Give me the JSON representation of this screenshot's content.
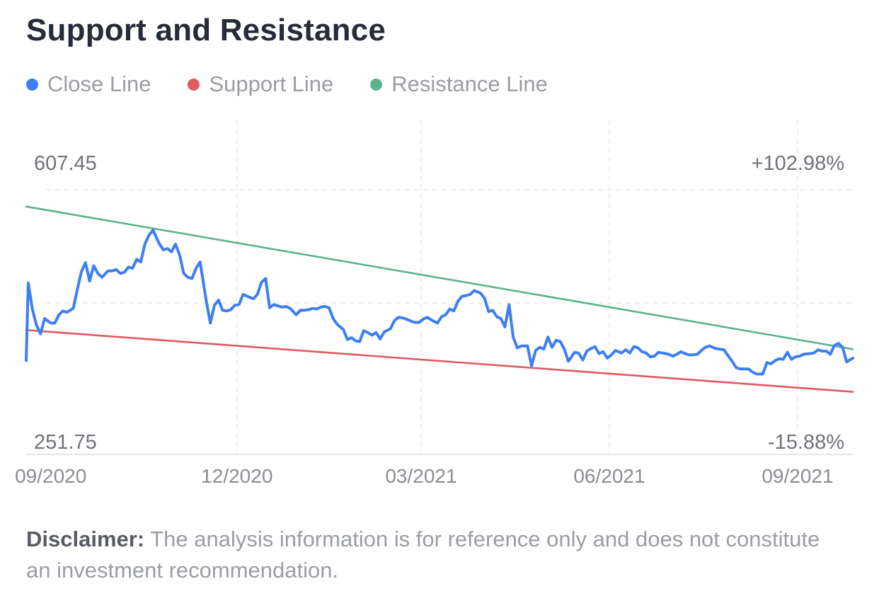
{
  "title": "Support and Resistance",
  "legend": [
    {
      "label": "Close Line",
      "color": "#3d7ff3"
    },
    {
      "label": "Support Line",
      "color": "#de5a60"
    },
    {
      "label": "Resistance Line",
      "color": "#5bb38d"
    }
  ],
  "disclaimer": {
    "label": "Disclaimer:",
    "text": " The analysis information is for reference only and does not constitute an investment recommendation."
  },
  "chart_data": {
    "type": "line",
    "y_max_label": "607.45",
    "y_min_label": "251.75",
    "pct_max_label": "+102.98%",
    "pct_min_label": "-15.88%",
    "ylim": [
      251.75,
      607.45
    ],
    "xlim": [
      "2020-08-20",
      "2021-09-28"
    ],
    "grid": true,
    "legend_position": "top-left",
    "x_ticks": [
      {
        "label": "09/2020",
        "date": "2020-09-01"
      },
      {
        "label": "12/2020",
        "date": "2020-12-01"
      },
      {
        "label": "03/2021",
        "date": "2021-03-01"
      },
      {
        "label": "06/2021",
        "date": "2021-06-01"
      },
      {
        "label": "09/2021",
        "date": "2021-09-01"
      }
    ],
    "series": [
      {
        "name": "Close Line",
        "color": "#3d7ff3",
        "points": [
          [
            "2020-08-20",
            339
          ],
          [
            "2020-08-21",
            461
          ],
          [
            "2020-08-23",
            420
          ],
          [
            "2020-08-25",
            395
          ],
          [
            "2020-08-27",
            381
          ],
          [
            "2020-08-29",
            405
          ],
          [
            "2020-09-01",
            398
          ],
          [
            "2020-09-03",
            398
          ],
          [
            "2020-09-05",
            411
          ],
          [
            "2020-09-07",
            417
          ],
          [
            "2020-09-09",
            415
          ],
          [
            "2020-09-12",
            421
          ],
          [
            "2020-09-14",
            451
          ],
          [
            "2020-09-16",
            479
          ],
          [
            "2020-09-18",
            493
          ],
          [
            "2020-09-20",
            464
          ],
          [
            "2020-09-22",
            488
          ],
          [
            "2020-09-24",
            476
          ],
          [
            "2020-09-26",
            470
          ],
          [
            "2020-09-29",
            480
          ],
          [
            "2020-10-01",
            480
          ],
          [
            "2020-10-03",
            482
          ],
          [
            "2020-10-05",
            476
          ],
          [
            "2020-10-07",
            478
          ],
          [
            "2020-10-09",
            486
          ],
          [
            "2020-10-11",
            484
          ],
          [
            "2020-10-13",
            498
          ],
          [
            "2020-10-15",
            494
          ],
          [
            "2020-10-17",
            522
          ],
          [
            "2020-10-19",
            536
          ],
          [
            "2020-10-21",
            544
          ],
          [
            "2020-10-24",
            523
          ],
          [
            "2020-10-26",
            513
          ],
          [
            "2020-10-28",
            515
          ],
          [
            "2020-10-30",
            510
          ],
          [
            "2020-11-01",
            522
          ],
          [
            "2020-11-03",
            505
          ],
          [
            "2020-11-05",
            476
          ],
          [
            "2020-11-07",
            470
          ],
          [
            "2020-11-09",
            468
          ],
          [
            "2020-11-11",
            484
          ],
          [
            "2020-11-13",
            494
          ],
          [
            "2020-11-16",
            433
          ],
          [
            "2020-11-18",
            398
          ],
          [
            "2020-11-20",
            426
          ],
          [
            "2020-11-22",
            434
          ],
          [
            "2020-11-24",
            418
          ],
          [
            "2020-11-26",
            417
          ],
          [
            "2020-11-28",
            419
          ],
          [
            "2020-11-30",
            426
          ],
          [
            "2020-12-02",
            427
          ],
          [
            "2020-12-04",
            443
          ],
          [
            "2020-12-06",
            440
          ],
          [
            "2020-12-09",
            436
          ],
          [
            "2020-12-11",
            443
          ],
          [
            "2020-12-13",
            462
          ],
          [
            "2020-12-15",
            468
          ],
          [
            "2020-12-17",
            422
          ],
          [
            "2020-12-19",
            427
          ],
          [
            "2020-12-21",
            425
          ],
          [
            "2020-12-23",
            423
          ],
          [
            "2020-12-25",
            424
          ],
          [
            "2020-12-27",
            421
          ],
          [
            "2020-12-30",
            411
          ],
          [
            "2021-01-01",
            418
          ],
          [
            "2021-01-03",
            418
          ],
          [
            "2021-01-05",
            419
          ],
          [
            "2021-01-07",
            421
          ],
          [
            "2021-01-09",
            420
          ],
          [
            "2021-01-11",
            423
          ],
          [
            "2021-01-13",
            424
          ],
          [
            "2021-01-15",
            422
          ],
          [
            "2021-01-17",
            405
          ],
          [
            "2021-01-19",
            396
          ],
          [
            "2021-01-22",
            388
          ],
          [
            "2021-01-24",
            372
          ],
          [
            "2021-01-26",
            375
          ],
          [
            "2021-01-28",
            370
          ],
          [
            "2021-01-30",
            369
          ],
          [
            "2021-02-01",
            386
          ],
          [
            "2021-02-03",
            383
          ],
          [
            "2021-02-05",
            379
          ],
          [
            "2021-02-07",
            383
          ],
          [
            "2021-02-09",
            373
          ],
          [
            "2021-02-11",
            384
          ],
          [
            "2021-02-14",
            389
          ],
          [
            "2021-02-16",
            402
          ],
          [
            "2021-02-18",
            407
          ],
          [
            "2021-02-20",
            406
          ],
          [
            "2021-02-22",
            404
          ],
          [
            "2021-02-24",
            401
          ],
          [
            "2021-02-26",
            399
          ],
          [
            "2021-02-28",
            399
          ],
          [
            "2021-03-02",
            404
          ],
          [
            "2021-03-04",
            407
          ],
          [
            "2021-03-07",
            401
          ],
          [
            "2021-03-09",
            398
          ],
          [
            "2021-03-11",
            408
          ],
          [
            "2021-03-13",
            411
          ],
          [
            "2021-03-15",
            420
          ],
          [
            "2021-03-17",
            417
          ],
          [
            "2021-03-19",
            432
          ],
          [
            "2021-03-21",
            440
          ],
          [
            "2021-03-23",
            441
          ],
          [
            "2021-03-25",
            443
          ],
          [
            "2021-03-27",
            449
          ],
          [
            "2021-03-30",
            445
          ],
          [
            "2021-04-01",
            437
          ],
          [
            "2021-04-03",
            416
          ],
          [
            "2021-04-05",
            418
          ],
          [
            "2021-04-07",
            408
          ],
          [
            "2021-04-09",
            405
          ],
          [
            "2021-04-11",
            392
          ],
          [
            "2021-04-13",
            427
          ],
          [
            "2021-04-15",
            376
          ],
          [
            "2021-04-17",
            359
          ],
          [
            "2021-04-19",
            362
          ],
          [
            "2021-04-22",
            362
          ],
          [
            "2021-04-24",
            331
          ],
          [
            "2021-04-26",
            355
          ],
          [
            "2021-04-28",
            360
          ],
          [
            "2021-04-30",
            357
          ],
          [
            "2021-05-02",
            376
          ],
          [
            "2021-05-04",
            360
          ],
          [
            "2021-05-06",
            371
          ],
          [
            "2021-05-08",
            369
          ],
          [
            "2021-05-10",
            357
          ],
          [
            "2021-05-12",
            338
          ],
          [
            "2021-05-15",
            352
          ],
          [
            "2021-05-17",
            351
          ],
          [
            "2021-05-19",
            340
          ],
          [
            "2021-05-21",
            354
          ],
          [
            "2021-05-23",
            358
          ],
          [
            "2021-05-25",
            361
          ],
          [
            "2021-05-27",
            350
          ],
          [
            "2021-05-29",
            353
          ],
          [
            "2021-05-31",
            343
          ],
          [
            "2021-06-02",
            348
          ],
          [
            "2021-06-04",
            355
          ],
          [
            "2021-06-07",
            351
          ],
          [
            "2021-06-09",
            356
          ],
          [
            "2021-06-11",
            351
          ],
          [
            "2021-06-13",
            361
          ],
          [
            "2021-06-15",
            359
          ],
          [
            "2021-06-17",
            353
          ],
          [
            "2021-06-19",
            351
          ],
          [
            "2021-06-21",
            345
          ],
          [
            "2021-06-23",
            346
          ],
          [
            "2021-06-25",
            352
          ],
          [
            "2021-06-27",
            351
          ],
          [
            "2021-06-30",
            349
          ],
          [
            "2021-07-02",
            346
          ],
          [
            "2021-07-04",
            349
          ],
          [
            "2021-07-06",
            353
          ],
          [
            "2021-07-08",
            350
          ],
          [
            "2021-07-10",
            348
          ],
          [
            "2021-07-12",
            348
          ],
          [
            "2021-07-14",
            349
          ],
          [
            "2021-07-16",
            355
          ],
          [
            "2021-07-18",
            360
          ],
          [
            "2021-07-20",
            362
          ],
          [
            "2021-07-23",
            358
          ],
          [
            "2021-07-25",
            357
          ],
          [
            "2021-07-27",
            356
          ],
          [
            "2021-07-29",
            347
          ],
          [
            "2021-07-31",
            338
          ],
          [
            "2021-08-02",
            328
          ],
          [
            "2021-08-04",
            326
          ],
          [
            "2021-08-06",
            326
          ],
          [
            "2021-08-08",
            326
          ],
          [
            "2021-08-10",
            321
          ],
          [
            "2021-08-12",
            318
          ],
          [
            "2021-08-15",
            318
          ],
          [
            "2021-08-17",
            336
          ],
          [
            "2021-08-19",
            334
          ],
          [
            "2021-08-21",
            339
          ],
          [
            "2021-08-23",
            342
          ],
          [
            "2021-08-25",
            341
          ],
          [
            "2021-08-27",
            352
          ],
          [
            "2021-08-29",
            341
          ],
          [
            "2021-08-31",
            345
          ],
          [
            "2021-09-02",
            346
          ],
          [
            "2021-09-04",
            349
          ],
          [
            "2021-09-07",
            350
          ],
          [
            "2021-09-09",
            351
          ],
          [
            "2021-09-11",
            356
          ],
          [
            "2021-09-13",
            354
          ],
          [
            "2021-09-15",
            354
          ],
          [
            "2021-09-17",
            349
          ],
          [
            "2021-09-19",
            363
          ],
          [
            "2021-09-21",
            366
          ],
          [
            "2021-09-23",
            360
          ],
          [
            "2021-09-25",
            337
          ],
          [
            "2021-09-28",
            343
          ]
        ]
      },
      {
        "name": "Support Line",
        "color": "#de5a60",
        "points": [
          [
            "2020-08-20",
            387
          ],
          [
            "2021-09-28",
            290
          ]
        ]
      },
      {
        "name": "Resistance Line",
        "color": "#5bb38d",
        "points": [
          [
            "2020-08-20",
            581
          ],
          [
            "2021-09-28",
            357
          ]
        ]
      }
    ]
  }
}
